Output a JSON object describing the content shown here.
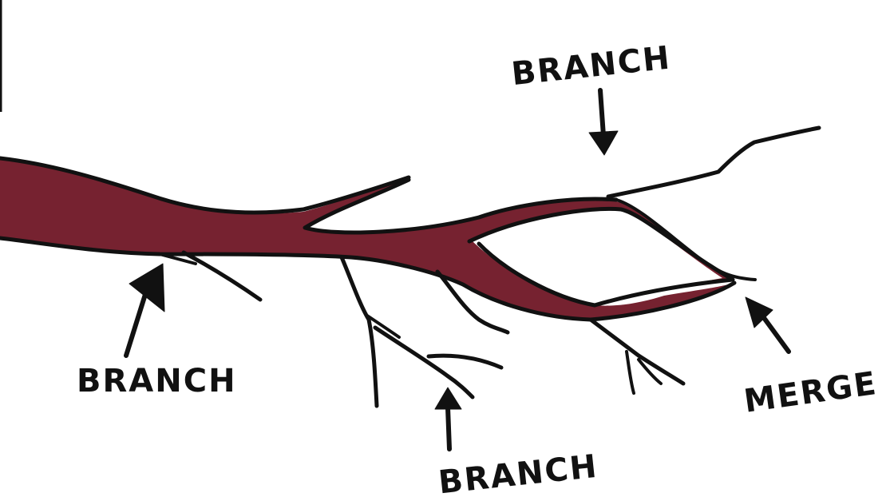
{
  "diagram": {
    "labels": {
      "branch_top": "BRANCH",
      "branch_left": "BRANCH",
      "branch_bottom": "BRANCH",
      "merge": "MERGE"
    },
    "colors": {
      "trunk_fill": "#762230",
      "ink": "#111111",
      "background": "#ffffff"
    }
  }
}
